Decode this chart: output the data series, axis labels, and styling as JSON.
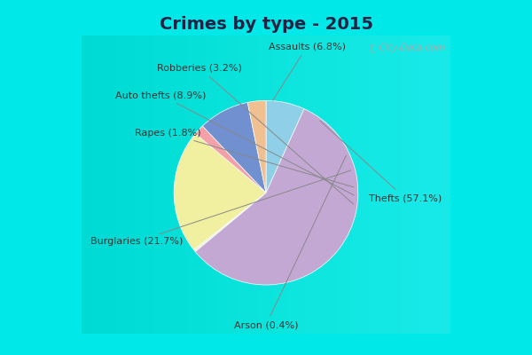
{
  "title": "Crimes by type - 2015",
  "reorder_labels": [
    "Assaults",
    "Thefts",
    "Arson",
    "Burglaries",
    "Rapes",
    "Auto thefts",
    "Robberies"
  ],
  "reorder_values": [
    6.8,
    57.1,
    0.4,
    21.7,
    1.8,
    8.9,
    3.2
  ],
  "wedge_colors": [
    "#90cfe8",
    "#c4a8d4",
    "#f0f0d8",
    "#f0f0a0",
    "#f4a0a8",
    "#7090d0",
    "#f0c090"
  ],
  "bg_cyan": "#00e8e8",
  "bg_chart": "#e8f4ec",
  "title_fontsize": 14,
  "title_color": "#222244",
  "label_fontsize": 8,
  "watermark": "ⓘ City-Data.com",
  "startangle": 90
}
